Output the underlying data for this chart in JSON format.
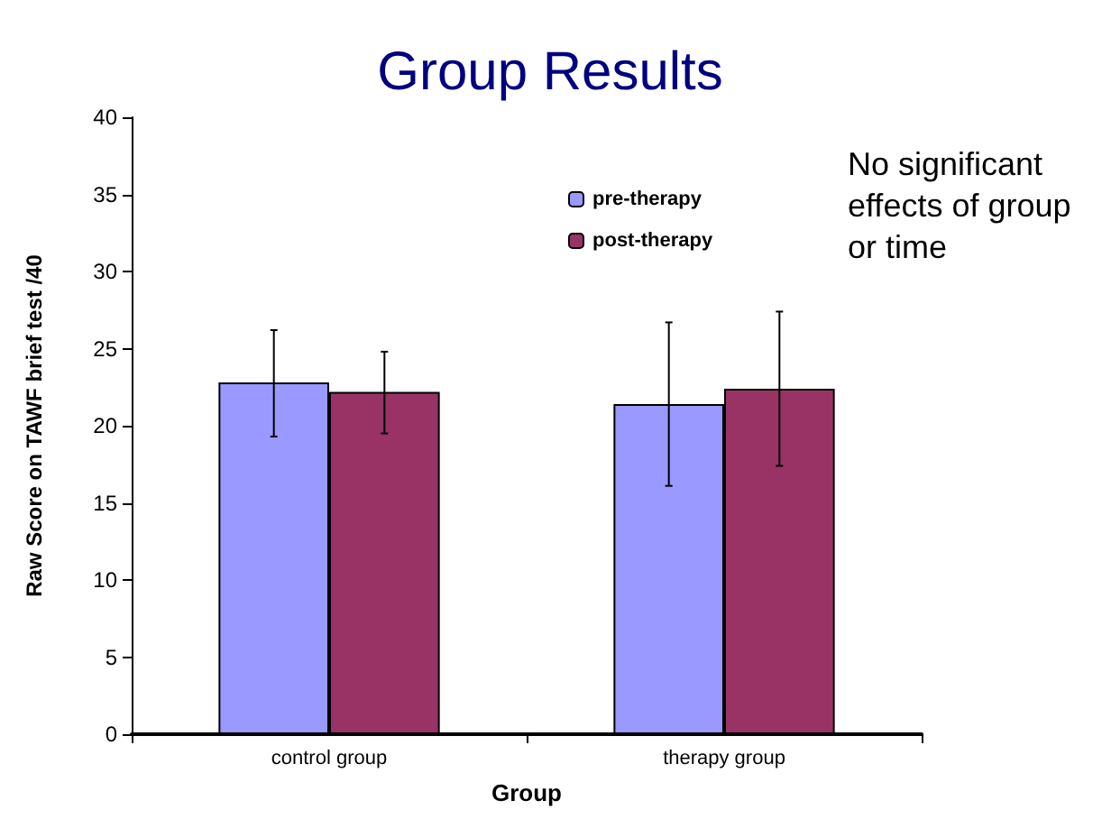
{
  "chart_data": {
    "type": "bar",
    "title": "Group Results",
    "xlabel": "Group",
    "ylabel": "Raw Score on TAWF brief test /40",
    "categories": [
      "control group",
      "therapy group"
    ],
    "series": [
      {
        "name": "pre-therapy",
        "color": "#9999ff",
        "values": [
          22.8,
          21.4
        ],
        "errors": [
          [
            19.3,
            26.2
          ],
          [
            16.1,
            26.7
          ]
        ]
      },
      {
        "name": "post-therapy",
        "color": "#993366",
        "values": [
          22.2,
          22.4
        ],
        "errors": [
          [
            19.5,
            24.8
          ],
          [
            17.4,
            27.4
          ]
        ]
      }
    ],
    "ylim": [
      0,
      40
    ],
    "yticks": [
      0,
      5,
      10,
      15,
      20,
      25,
      30,
      35,
      40
    ],
    "grid": false,
    "legend": "top",
    "annotations": [
      "No significant effects of group or time"
    ]
  }
}
